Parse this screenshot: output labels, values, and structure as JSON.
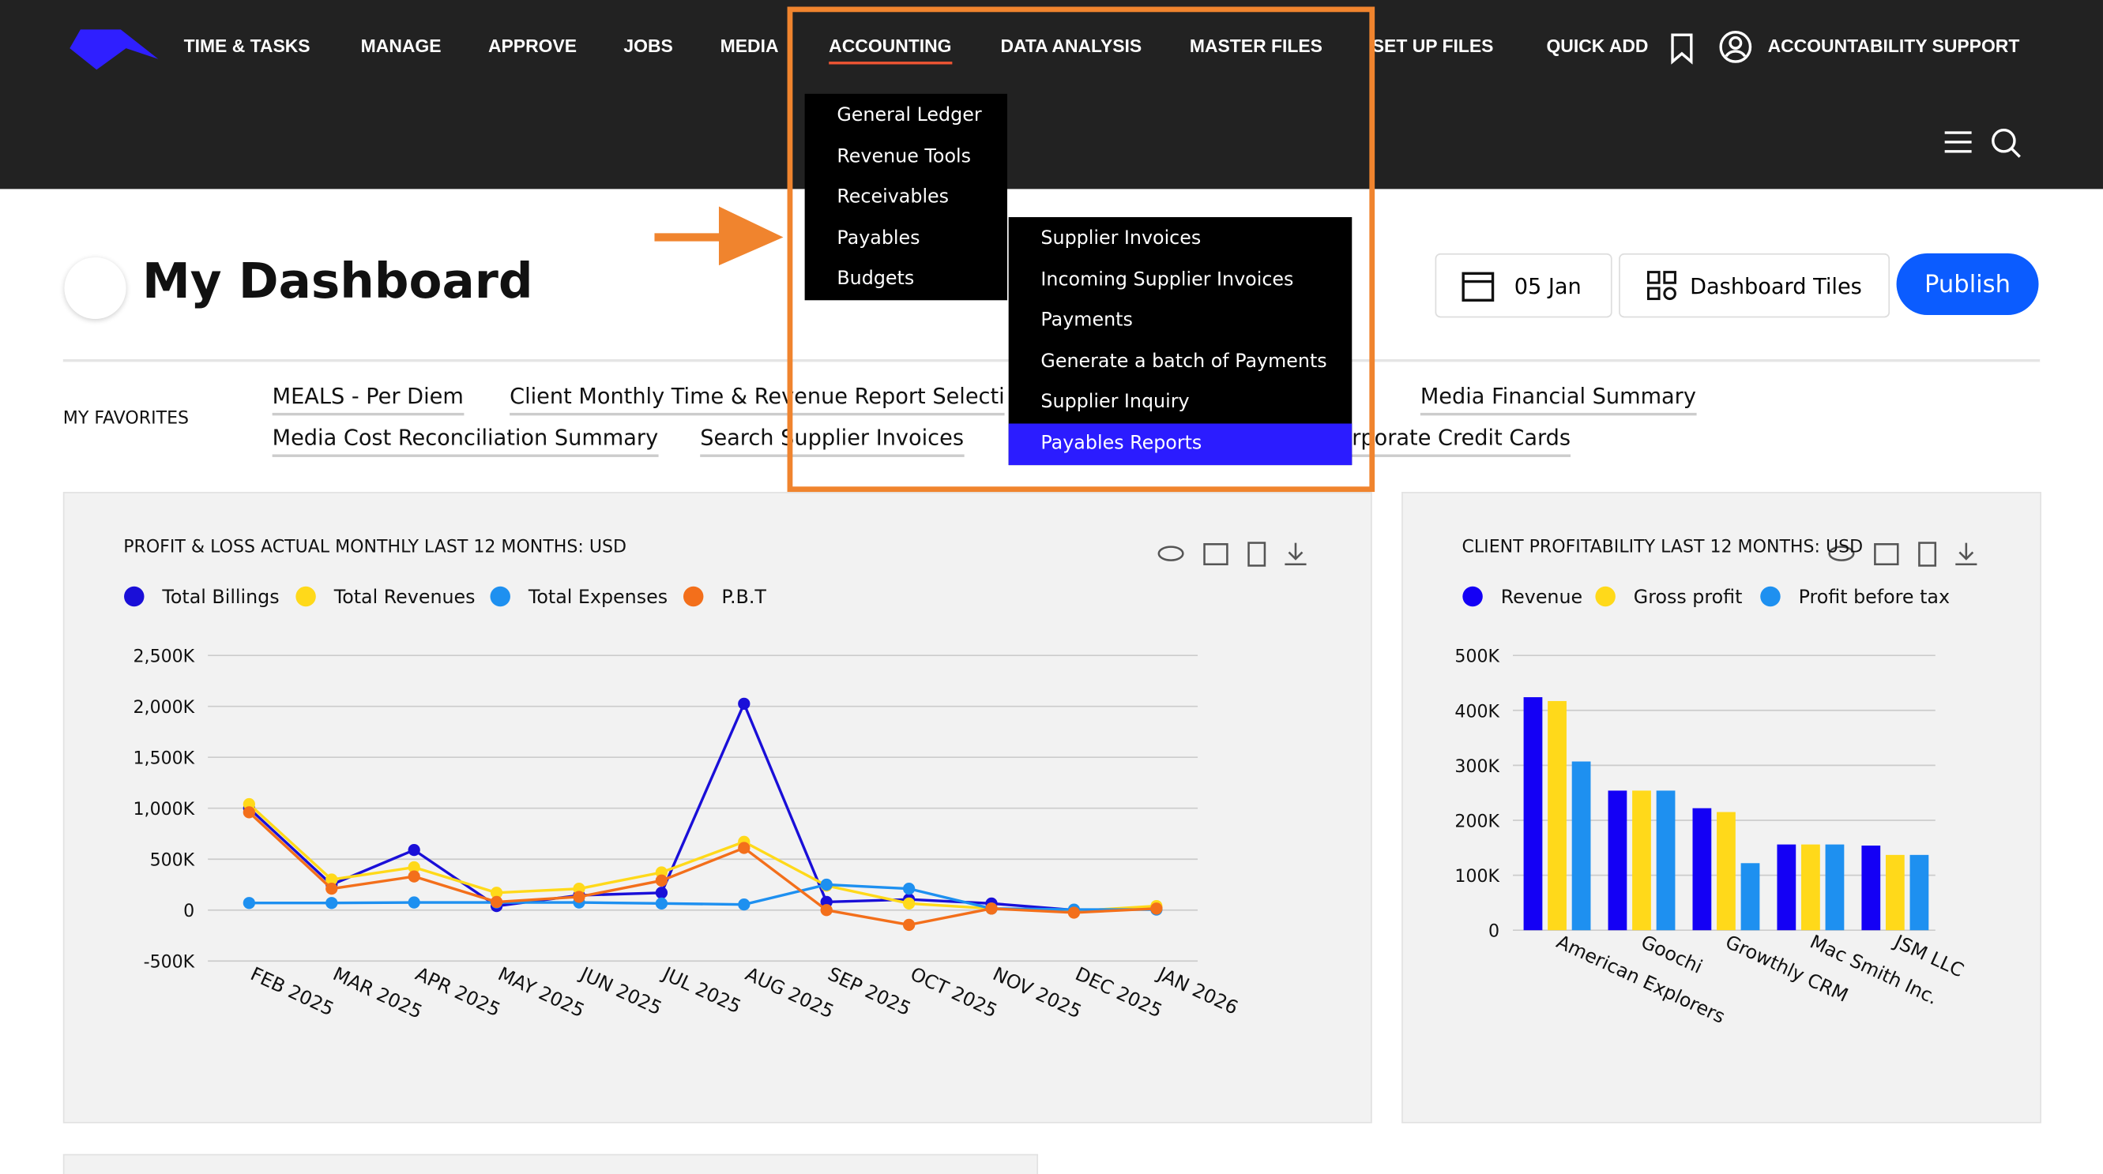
{
  "nav": {
    "items": [
      "TIME & TASKS",
      "MANAGE",
      "APPROVE",
      "JOBS",
      "MEDIA",
      "ACCOUNTING",
      "DATA ANALYSIS",
      "MASTER FILES",
      "SET UP FILES",
      "QUICK ADD"
    ],
    "support": "ACCOUNTABILITY SUPPORT"
  },
  "accounting_menu": [
    "General Ledger",
    "Revenue Tools",
    "Receivables",
    "Payables",
    "Budgets"
  ],
  "payables_menu": [
    "Supplier Invoices",
    "Incoming Supplier Invoices",
    "Payments",
    "Generate a batch of Payments",
    "Supplier Inquiry",
    "Payables Reports"
  ],
  "dashboard": {
    "title": "My Dashboard",
    "date": "05 Jan",
    "tiles": "Dashboard Tiles",
    "publish": "Publish"
  },
  "favorites": {
    "label": "MY FAVORITES",
    "items": [
      "MEALS - Per Diem",
      "Client Monthly Time & Revenue Report Selecti",
      "Media Financial Summary",
      "Media Cost Reconciliation Summary",
      "Search Supplier Invoices",
      "Corporate Credit Cards"
    ]
  },
  "chart_data": [
    {
      "type": "line",
      "title": "PROFIT & LOSS ACTUAL MONTHLY LAST 12 MONTHS: USD",
      "categories": [
        "FEB 2025",
        "MAR 2025",
        "APR 2025",
        "MAY 2025",
        "JUN 2025",
        "JUL 2025",
        "AUG 2025",
        "SEP 2025",
        "OCT 2025",
        "NOV 2025",
        "DEC 2025",
        "JAN 2026"
      ],
      "series": [
        {
          "name": "Total Billings",
          "color": "#1a0fd8",
          "values": [
            1000,
            250,
            590,
            40,
            145,
            170,
            2026,
            80,
            105,
            65,
            0,
            15
          ]
        },
        {
          "name": "Total Revenues",
          "color": "#ffd91a",
          "values": [
            1040,
            300,
            420,
            170,
            210,
            370,
            670,
            240,
            65,
            15,
            -10,
            40
          ]
        },
        {
          "name": "Total Expenses",
          "color": "#1e90f0",
          "values": [
            70,
            70,
            75,
            75,
            75,
            65,
            55,
            250,
            210,
            15,
            5,
            5
          ]
        },
        {
          "name": "P.B.T",
          "color": "#f36f1b",
          "values": [
            960,
            210,
            330,
            80,
            130,
            290,
            610,
            0,
            -145,
            15,
            -25,
            15
          ]
        }
      ],
      "ylim": [
        -500,
        2500
      ],
      "yticks": [
        {
          "value": -500,
          "label": "-500K"
        },
        0,
        {
          "value": 500,
          "label": "500K"
        },
        {
          "value": 1000,
          "label": "1,000K"
        },
        {
          "value": 1500,
          "label": "1,500K"
        },
        {
          "value": 2000,
          "label": "2,000K"
        },
        {
          "value": 2500,
          "label": "2,500K"
        }
      ],
      "grid": true
    },
    {
      "type": "bar",
      "title": "CLIENT PROFITABILITY LAST 12 MONTHS: USD",
      "categories": [
        "American Explorers",
        "Goochi",
        "Growthly CRM",
        "Mac Smith Inc.",
        "JSM LLC"
      ],
      "series": [
        {
          "name": "Revenue",
          "color": "#1400f5",
          "values": [
            424,
            254,
            222,
            156,
            154
          ]
        },
        {
          "name": "Gross profit",
          "color": "#ffd91a",
          "values": [
            417,
            254,
            215,
            156,
            137
          ]
        },
        {
          "name": "Profit before tax",
          "color": "#1e90f0",
          "values": [
            307,
            254,
            122,
            156,
            137
          ]
        }
      ],
      "ylim": [
        0,
        500
      ],
      "yticks": [
        0,
        {
          "value": 100,
          "label": "100K"
        },
        {
          "value": 200,
          "label": "200K"
        },
        {
          "value": 300,
          "label": "300K"
        },
        {
          "value": 400,
          "label": "400K"
        },
        {
          "value": 500,
          "label": "500K"
        }
      ],
      "grid": true
    }
  ]
}
